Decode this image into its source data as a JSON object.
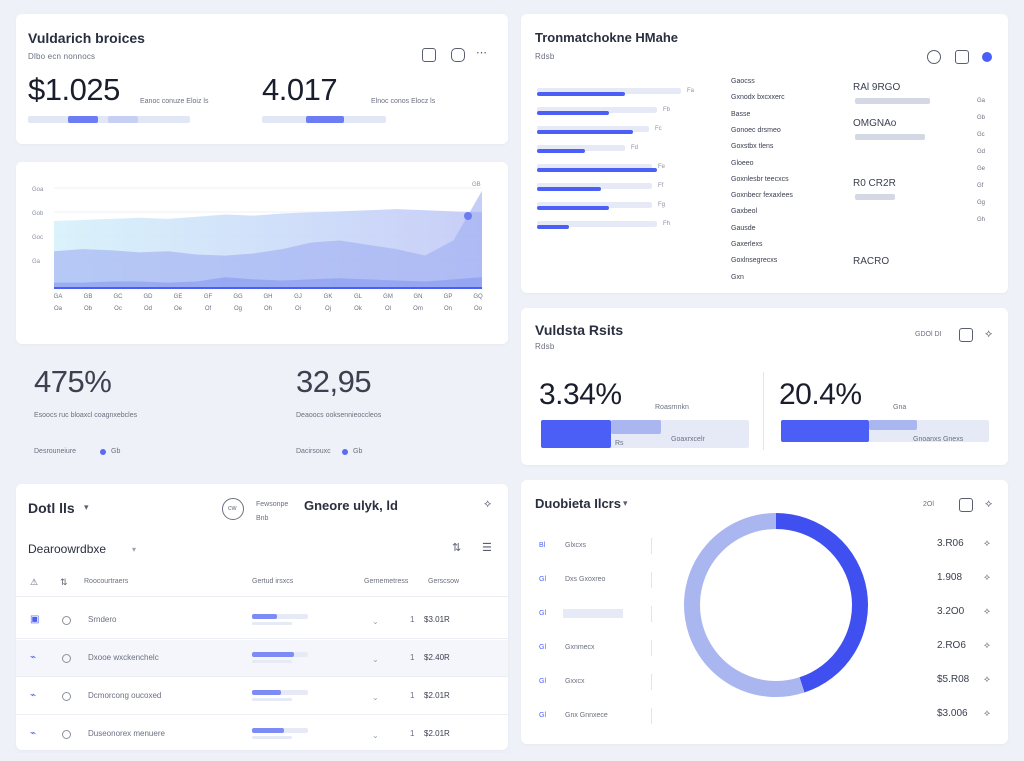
{
  "top_left": {
    "title": "Vuldarich broices",
    "subtitle": "Dlbo ecn nonnocs",
    "stat1": {
      "value": "$1.025",
      "caption": "Eanoc conuze  Eloiz  ls",
      "progress": 0.32
    },
    "stat2": {
      "value": "4.017",
      "caption": "Elnoc conos  Elocz  ls",
      "progress": 0.55
    }
  },
  "area_chart": {
    "x_labels": [
      "GA",
      "GB",
      "GC",
      "GD",
      "GE",
      "GF",
      "GG",
      "GH",
      "GJ",
      "GK",
      "GL",
      "GM",
      "GN",
      "GP",
      "GQ"
    ],
    "x_labels_b": [
      "Oa",
      "Ob",
      "Oc",
      "Od",
      "Oe",
      "Of",
      "Og",
      "Oh",
      "Oi",
      "Oj",
      "Ok",
      "Ol",
      "Om",
      "On",
      "Oo"
    ],
    "y_labels": [
      "Goa",
      "Gob",
      "Goc",
      "Ga"
    ],
    "end_label": "GB",
    "chart_data": {
      "type": "area",
      "x": [
        0,
        1,
        2,
        3,
        4,
        5,
        6,
        7,
        8,
        9,
        10,
        11,
        12,
        13,
        14,
        15
      ],
      "series": [
        {
          "values": [
            62,
            63,
            64,
            65,
            64,
            66,
            68,
            67,
            69,
            70,
            71,
            72,
            73,
            72,
            71,
            70
          ]
        },
        {
          "values": [
            34,
            36,
            35,
            33,
            34,
            31,
            30,
            32,
            36,
            42,
            44,
            40,
            36,
            30,
            44,
            90
          ]
        },
        {
          "values": [
            5,
            5,
            6,
            6,
            5,
            6,
            10,
            8,
            7,
            8,
            9,
            8,
            7,
            6,
            8,
            10
          ]
        }
      ],
      "ylim": [
        0,
        100
      ]
    }
  },
  "mid_left": {
    "stat1": {
      "value": "475%",
      "caption": "Esoocs ruc bloaxcl coagnxebcles",
      "link": "Desrouneiure",
      "badge": "Gb"
    },
    "stat2": {
      "value": "32,95",
      "caption": "Deaoocs ooksennieoccleos",
      "link": "Dacirsouxc",
      "badge": "Gb"
    }
  },
  "bottom_left": {
    "title": "Dotl lls",
    "meta_title": "Gneore ulyk, ld",
    "meta_badge": "cw",
    "meta_caption1": "Fewsonpe",
    "meta_caption2": "Bnb",
    "section": "Dearoowrdbxe",
    "columns": [
      "Roocourtraers",
      "Gertud irsxcs",
      "Gernemetress",
      "Gerscsow"
    ],
    "rows": [
      {
        "name": "Srndero",
        "amount": "$3.01R",
        "count": "1",
        "progress": 0.45
      },
      {
        "name": "Dxooe wxckenchelc",
        "amount": "$2.40R",
        "count": "1",
        "progress": 0.75
      },
      {
        "name": "Dcmorcong oucoxed",
        "amount": "$2.01R",
        "count": "1",
        "progress": 0.52
      },
      {
        "name": "Duseonorex menuere",
        "amount": "$2.01R",
        "count": "1",
        "progress": 0.58
      }
    ]
  },
  "top_right": {
    "title": "Tronmatchokne HMahe",
    "subtitle": "Rdsb",
    "bars": [
      {
        "value": 0.55,
        "track": 0.9,
        "label": "Fa"
      },
      {
        "value": 0.45,
        "track": 0.75,
        "label": "Fb"
      },
      {
        "value": 0.6,
        "track": 0.7,
        "label": "Fc"
      },
      {
        "value": 0.3,
        "track": 0.55,
        "label": "Fd"
      },
      {
        "value": 0.75,
        "track": 0.72,
        "label": "Fe"
      },
      {
        "value": 0.4,
        "track": 0.72,
        "label": "Ff"
      },
      {
        "value": 0.45,
        "track": 0.72,
        "label": "Fg"
      },
      {
        "value": 0.2,
        "track": 0.75,
        "label": "Fh"
      }
    ],
    "mid_labels": [
      "Gaocss",
      "Gxnodx bxcxxerc",
      "Basse",
      "Gonoec drsmeo",
      "Goxstbx tlens",
      "Gloeeo",
      "Goxnlesbr teecxcs",
      "Goxnbecr fexaxlees",
      "Gaxbeol",
      "Gausde",
      "Gaxerlexs",
      "Goxlnsegrecxs",
      "Gxn"
    ],
    "right_groups": [
      {
        "label": "RAl 9RGO",
        "value": 0.75
      },
      {
        "label": "OMGNAo",
        "value": 0.7
      },
      {
        "label": "R0 CR2R",
        "value": 0.4
      },
      {
        "label": "RACRO",
        "value": 0.0
      }
    ],
    "right_small": [
      "Ga",
      "Gb",
      "Gc",
      "Gd",
      "Ge",
      "Gf",
      "Gg",
      "Gh"
    ]
  },
  "mid_right": {
    "title": "Vuldsta Rsits",
    "subtitle": "Rdsb",
    "header_label": "GDOl DI",
    "stat1": {
      "value": "3.34%",
      "caption": "Roasrnnkn",
      "caption2": "Goaxrxcelr",
      "badge": "Rs",
      "progress": 0.35
    },
    "stat2": {
      "value": "20.4%",
      "caption": "Gna",
      "caption2": "Gnoanxs  Gnexs",
      "progress": 0.5
    }
  },
  "bottom_right": {
    "title": "Duobieta Ilcrs",
    "header_label": "2Ol",
    "legend": [
      {
        "tag": "Bl",
        "label": "Glxcxs"
      },
      {
        "tag": "Gl",
        "label": "Dxs  Gxoxreo"
      },
      {
        "tag": "Gl",
        "label": ""
      },
      {
        "tag": "Gl",
        "label": "Gxnmecx"
      },
      {
        "tag": "Gl",
        "label": "Gxxcx"
      },
      {
        "tag": "Gl",
        "label": "Gnx Gnnxece"
      }
    ],
    "values": [
      "3.R06",
      "1.908",
      "3.2O0",
      "2.RO6",
      "$5.R08",
      "$3.006"
    ],
    "chart_data": {
      "type": "pie",
      "values": [
        45,
        55
      ],
      "colors": [
        "#3f4ff0",
        "#a9b6f0"
      ]
    }
  },
  "colors": {
    "accent": "#4b5ef5",
    "accent_light": "#aab6f2",
    "track": "#e2e7f5"
  }
}
